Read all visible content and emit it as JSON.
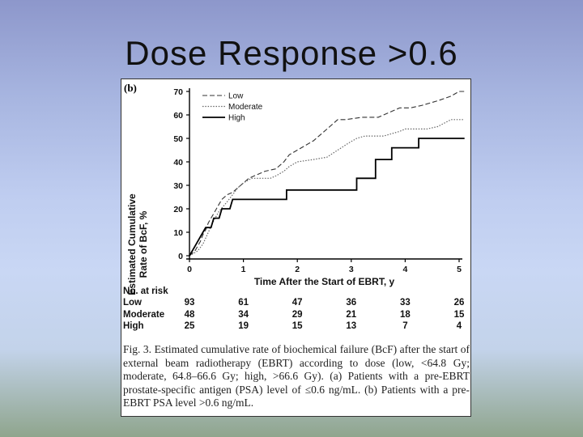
{
  "slide": {
    "title": "Dose Response >0.6"
  },
  "figure": {
    "panel_label": "(b)",
    "risk_table": {
      "title": "No. at risk",
      "times": [
        0,
        1,
        2,
        3,
        4,
        5
      ],
      "rows": [
        {
          "name": "Low",
          "values": [
            "93",
            "61",
            "47",
            "36",
            "33",
            "26"
          ]
        },
        {
          "name": "Moderate",
          "values": [
            "48",
            "34",
            "29",
            "21",
            "18",
            "15"
          ]
        },
        {
          "name": "High",
          "values": [
            "25",
            "19",
            "15",
            "13",
            "7",
            "4"
          ]
        }
      ]
    },
    "caption": "Fig. 3.  Estimated cumulative rate of biochemical failure (BcF) after the start of external beam radiotherapy (EBRT) according to dose (low, <64.8 Gy; moderate, 64.8–66.6 Gy; high, >66.6 Gy). (a) Patients with a pre-EBRT prostate-specific antigen (PSA) level of ≤0.6 ng/mL. (b) Patients with a pre-EBRT PSA level >0.6 ng/mL."
  },
  "chart_data": {
    "type": "line",
    "xlabel": "Time After the Start of EBRT, y",
    "ylabel": [
      "Estimated Cumulative",
      "Rate of BcF, %"
    ],
    "xlim": [
      0,
      5
    ],
    "ylim": [
      0,
      70
    ],
    "xticks": [
      "0",
      "1",
      "2",
      "3",
      "4",
      "5"
    ],
    "yticks": [
      "0",
      "10",
      "20",
      "30",
      "40",
      "50",
      "60",
      "70"
    ],
    "legend_position": "top-left",
    "series": [
      {
        "name": "Low",
        "style": "dashed",
        "color": "#333333",
        "points": [
          [
            0,
            0
          ],
          [
            0.1,
            2
          ],
          [
            0.15,
            4
          ],
          [
            0.2,
            6
          ],
          [
            0.25,
            9
          ],
          [
            0.3,
            11
          ],
          [
            0.35,
            14
          ],
          [
            0.4,
            16
          ],
          [
            0.45,
            18
          ],
          [
            0.5,
            20
          ],
          [
            0.55,
            22
          ],
          [
            0.6,
            24
          ],
          [
            0.7,
            26
          ],
          [
            0.8,
            27
          ],
          [
            0.9,
            29
          ],
          [
            1.0,
            31
          ],
          [
            1.1,
            33
          ],
          [
            1.2,
            34
          ],
          [
            1.3,
            35
          ],
          [
            1.4,
            36
          ],
          [
            1.6,
            37
          ],
          [
            1.75,
            40
          ],
          [
            1.85,
            43
          ],
          [
            2.0,
            45
          ],
          [
            2.15,
            47
          ],
          [
            2.3,
            49
          ],
          [
            2.45,
            52
          ],
          [
            2.6,
            55
          ],
          [
            2.75,
            58
          ],
          [
            2.9,
            58
          ],
          [
            3.2,
            59
          ],
          [
            3.5,
            59
          ],
          [
            3.7,
            61
          ],
          [
            3.9,
            63
          ],
          [
            4.1,
            63
          ],
          [
            4.3,
            64
          ],
          [
            4.6,
            66
          ],
          [
            4.85,
            68
          ],
          [
            5.0,
            70
          ],
          [
            5.1,
            70
          ]
        ]
      },
      {
        "name": "Moderate",
        "style": "dotted",
        "color": "#666666",
        "points": [
          [
            0,
            0
          ],
          [
            0.15,
            2
          ],
          [
            0.25,
            5
          ],
          [
            0.35,
            10
          ],
          [
            0.45,
            15
          ],
          [
            0.55,
            19
          ],
          [
            0.7,
            23
          ],
          [
            0.8,
            26
          ],
          [
            0.9,
            29
          ],
          [
            1.0,
            31
          ],
          [
            1.15,
            33
          ],
          [
            1.3,
            33
          ],
          [
            1.5,
            33
          ],
          [
            1.6,
            34
          ],
          [
            1.75,
            36
          ],
          [
            1.85,
            38
          ],
          [
            2.0,
            40
          ],
          [
            2.3,
            41
          ],
          [
            2.55,
            42
          ],
          [
            2.75,
            45
          ],
          [
            2.95,
            48
          ],
          [
            3.1,
            50
          ],
          [
            3.25,
            51
          ],
          [
            3.6,
            51
          ],
          [
            3.9,
            53
          ],
          [
            4.0,
            54
          ],
          [
            4.4,
            54
          ],
          [
            4.6,
            55
          ],
          [
            4.85,
            58
          ],
          [
            5.0,
            58
          ],
          [
            5.1,
            58
          ]
        ]
      },
      {
        "name": "High",
        "style": "solid",
        "color": "#000000",
        "points": [
          [
            0,
            0
          ],
          [
            0.1,
            4
          ],
          [
            0.2,
            8
          ],
          [
            0.3,
            12
          ],
          [
            0.4,
            12
          ],
          [
            0.45,
            16
          ],
          [
            0.55,
            16
          ],
          [
            0.6,
            20
          ],
          [
            0.75,
            20
          ],
          [
            0.8,
            24
          ],
          [
            1.4,
            24
          ],
          [
            1.8,
            24
          ],
          [
            1.8,
            28
          ],
          [
            3.1,
            28
          ],
          [
            3.1,
            33
          ],
          [
            3.45,
            33
          ],
          [
            3.45,
            41
          ],
          [
            3.75,
            41
          ],
          [
            3.75,
            46
          ],
          [
            4.25,
            46
          ],
          [
            4.25,
            50
          ],
          [
            5.1,
            50
          ]
        ]
      }
    ]
  }
}
